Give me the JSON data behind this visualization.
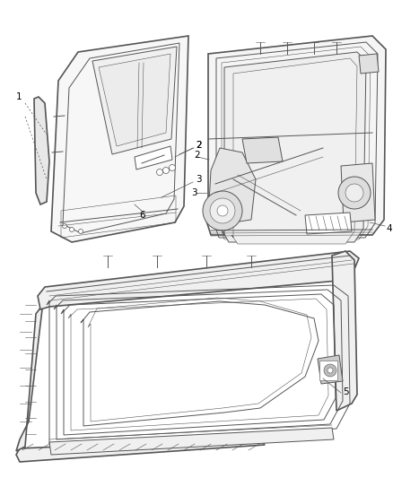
{
  "bg_color": "#ffffff",
  "lc": "#555555",
  "lc_dark": "#333333",
  "fig_width": 4.38,
  "fig_height": 5.33,
  "dpi": 100,
  "lw_outer": 1.2,
  "lw_mid": 0.7,
  "lw_thin": 0.4,
  "label_fs": 7.5
}
